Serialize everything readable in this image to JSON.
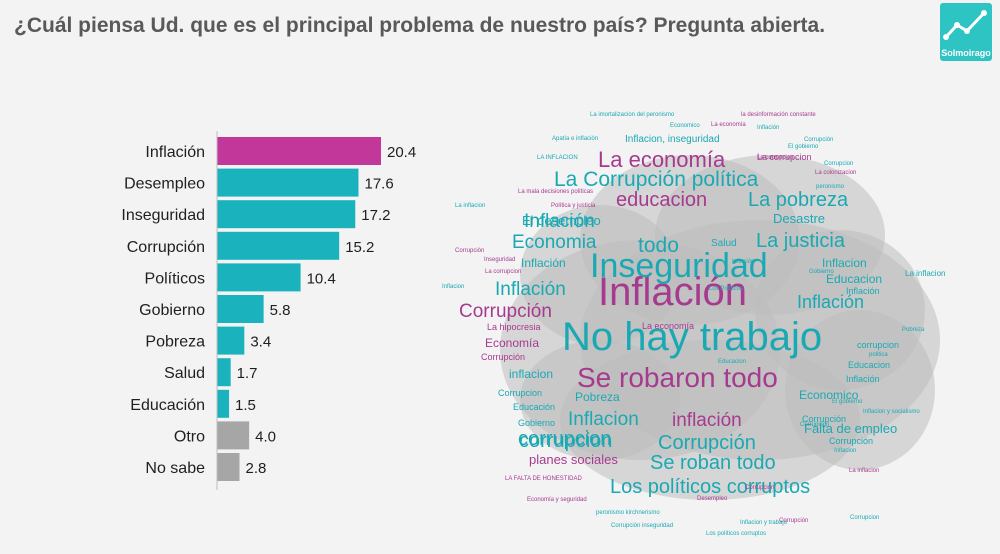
{
  "title": "¿Cuál piensa Ud. que es el principal problema de nuestro país? Pregunta abierta.",
  "logo": {
    "text": "Solmoirago"
  },
  "colors": {
    "highlight": "#c2379a",
    "main": "#1ab3bd",
    "other": "#a6a6a6",
    "cloud_teal": "#1aa9b3",
    "cloud_magenta": "#a63a8f"
  },
  "chart_data": {
    "type": "bar",
    "orientation": "horizontal",
    "categories": [
      "Inflación",
      "Desempleo",
      "Inseguridad",
      "Corrupción",
      "Políticos",
      "Gobierno",
      "Pobreza",
      "Salud",
      "Educación",
      "Otro",
      "No sabe"
    ],
    "values": [
      20.4,
      17.6,
      17.2,
      15.2,
      10.4,
      5.8,
      3.4,
      1.7,
      1.5,
      4.0,
      2.8
    ],
    "value_labels": [
      "20.4",
      "17.6",
      "17.2",
      "15.2",
      "10.4",
      "5.8",
      "3.4",
      "1.7",
      "1.5",
      "4.0",
      "2.8"
    ],
    "groups": [
      "highlight",
      "main",
      "main",
      "main",
      "main",
      "main",
      "main",
      "main",
      "main",
      "other",
      "other"
    ],
    "xlim": [
      0,
      22
    ]
  },
  "word_cloud": [
    {
      "text": "Inflación",
      "c": "m",
      "s": 40
    },
    {
      "text": "No hay trabajo",
      "c": "t",
      "s": 40
    },
    {
      "text": "Inseguridad",
      "c": "t",
      "s": 34
    },
    {
      "text": "Se robaron todo",
      "c": "m",
      "s": 28
    },
    {
      "text": "La economía",
      "c": "m",
      "s": 22
    },
    {
      "text": "La Corrupción política",
      "c": "t",
      "s": 21
    },
    {
      "text": "educacion",
      "c": "m",
      "s": 20
    },
    {
      "text": "La pobreza",
      "c": "t",
      "s": 20
    },
    {
      "text": "Inflación",
      "c": "t",
      "s": 19
    },
    {
      "text": "Economia",
      "c": "t",
      "s": 19
    },
    {
      "text": "todo",
      "c": "t",
      "s": 21
    },
    {
      "text": "La justicia",
      "c": "t",
      "s": 20
    },
    {
      "text": "Inflación",
      "c": "t",
      "s": 19
    },
    {
      "text": "Corrupción",
      "c": "m",
      "s": 19
    },
    {
      "text": "Inflación",
      "c": "t",
      "s": 18
    },
    {
      "text": "corrupcion",
      "c": "t",
      "s": 20
    },
    {
      "text": "Inflacion",
      "c": "t",
      "s": 19
    },
    {
      "text": "inflación",
      "c": "m",
      "s": 19
    },
    {
      "text": "corrupcion",
      "c": "t",
      "s": 20
    },
    {
      "text": "Corrupción",
      "c": "t",
      "s": 20
    },
    {
      "text": "Se roban todo",
      "c": "t",
      "s": 20
    },
    {
      "text": "Los políticos corruptos",
      "c": "t",
      "s": 20
    },
    {
      "text": "El desempleo",
      "c": "t",
      "s": 13
    },
    {
      "text": "Desastre",
      "c": "t",
      "s": 13
    },
    {
      "text": "Inflacion",
      "c": "t",
      "s": 12
    },
    {
      "text": "Educacion",
      "c": "t",
      "s": 12
    },
    {
      "text": "Salud",
      "c": "t",
      "s": 10
    },
    {
      "text": "Inflación",
      "c": "t",
      "s": 12
    },
    {
      "text": "Economía",
      "c": "m",
      "s": 12
    },
    {
      "text": "inflacion",
      "c": "t",
      "s": 12
    },
    {
      "text": "Pobreza",
      "c": "t",
      "s": 12
    },
    {
      "text": "Economico",
      "c": "t",
      "s": 12
    },
    {
      "text": "Falta de empleo",
      "c": "t",
      "s": 13
    },
    {
      "text": "planes sociales",
      "c": "m",
      "s": 13
    },
    {
      "text": "Inflacion, inseguridad",
      "c": "t",
      "s": 10
    },
    {
      "text": "La hipocresia",
      "c": "m",
      "s": 9
    },
    {
      "text": "Corrupción",
      "c": "m",
      "s": 9
    },
    {
      "text": "Corrupcion",
      "c": "t",
      "s": 9
    },
    {
      "text": "Educación",
      "c": "t",
      "s": 9
    },
    {
      "text": "Gobierno",
      "c": "t",
      "s": 9
    },
    {
      "text": "Corrupción",
      "c": "t",
      "s": 9
    },
    {
      "text": "Educacion",
      "c": "t",
      "s": 9
    },
    {
      "text": "corrupcion",
      "c": "t",
      "s": 9
    },
    {
      "text": "Inflación",
      "c": "t",
      "s": 9
    },
    {
      "text": "Corrupción",
      "c": "t",
      "s": 9
    },
    {
      "text": "Inflación",
      "c": "t",
      "s": 9
    },
    {
      "text": "La economía",
      "c": "m",
      "s": 9
    },
    {
      "text": "La corrupcion",
      "c": "m",
      "s": 9
    },
    {
      "text": "La inflacion",
      "c": "t",
      "s": 8
    },
    {
      "text": "Inflacion y socialismo",
      "c": "t",
      "s": 6
    },
    {
      "text": "La imortalizacion del peronismo",
      "c": "t",
      "s": 6
    },
    {
      "text": "la desinformación constante",
      "c": "m",
      "s": 6
    },
    {
      "text": "Economico",
      "c": "t",
      "s": 6
    },
    {
      "text": "La economía",
      "c": "m",
      "s": 6
    },
    {
      "text": "Inflación",
      "c": "t",
      "s": 6
    },
    {
      "text": "Apatía e inflación",
      "c": "t",
      "s": 6
    },
    {
      "text": "Corrupción",
      "c": "t",
      "s": 6
    },
    {
      "text": "LA INFLACION",
      "c": "t",
      "s": 6
    },
    {
      "text": "El gobierno",
      "c": "t",
      "s": 6
    },
    {
      "text": "La corrupcion",
      "c": "m",
      "s": 6
    },
    {
      "text": "Corrupcion",
      "c": "t",
      "s": 6
    },
    {
      "text": "La colonizacion",
      "c": "m",
      "s": 6
    },
    {
      "text": "peronismo",
      "c": "t",
      "s": 6
    },
    {
      "text": "La mala decisiones políticas",
      "c": "m",
      "s": 6
    },
    {
      "text": "La inflacion",
      "c": "t",
      "s": 6
    },
    {
      "text": "Política y justicia",
      "c": "m",
      "s": 6
    },
    {
      "text": "Corrupción",
      "c": "m",
      "s": 6
    },
    {
      "text": "Inseguridad",
      "c": "m",
      "s": 6
    },
    {
      "text": "La corrupcion",
      "c": "m",
      "s": 6
    },
    {
      "text": "Inflacion",
      "c": "t",
      "s": 6
    },
    {
      "text": "Los Políticos",
      "c": "t",
      "s": 6
    },
    {
      "text": "Educacion",
      "c": "t",
      "s": 6
    },
    {
      "text": "Gobierno",
      "c": "t",
      "s": 6
    },
    {
      "text": "Pobreza",
      "c": "t",
      "s": 6
    },
    {
      "text": "LA FALTA DE HONESTIDAD",
      "c": "m",
      "s": 6
    },
    {
      "text": "Economía y seguridad",
      "c": "m",
      "s": 6
    },
    {
      "text": "Desempleo",
      "c": "m",
      "s": 6
    },
    {
      "text": "peronismo kirchnerismo",
      "c": "t",
      "s": 6
    },
    {
      "text": "Corrupción inseguridad",
      "c": "t",
      "s": 6
    },
    {
      "text": "Los políticos corruptos",
      "c": "t",
      "s": 6
    },
    {
      "text": "Inflacion y trabajo",
      "c": "t",
      "s": 6
    },
    {
      "text": "Corrupción",
      "c": "m",
      "s": 6
    },
    {
      "text": "Corrupcion",
      "c": "t",
      "s": 6
    },
    {
      "text": "politica",
      "c": "t",
      "s": 6
    },
    {
      "text": "Corrupción",
      "c": "m",
      "s": 6
    },
    {
      "text": "Inflacion",
      "c": "t",
      "s": 6
    },
    {
      "text": "Corrupcion",
      "c": "t",
      "s": 6
    },
    {
      "text": "La inflacion",
      "c": "m",
      "s": 6
    },
    {
      "text": "El gobierno",
      "c": "t",
      "s": 6
    },
    {
      "text": "Inflación",
      "c": "t",
      "s": 6
    }
  ]
}
